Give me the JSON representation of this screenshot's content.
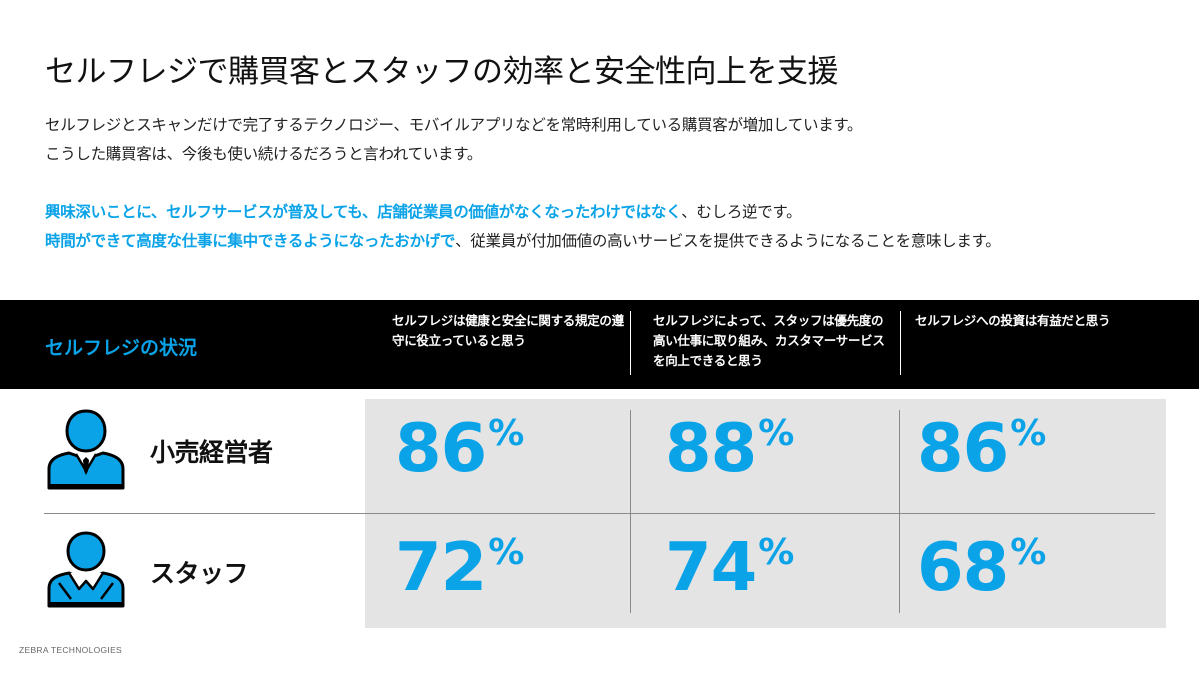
{
  "title": "セルフレジで購買客とスタッフの効率と安全性向上を支援",
  "intro": {
    "line1": "セルフレジとスキャンだけで完了するテクノロジー、モバイルアプリなどを常時利用している購買客が増加しています。",
    "line2": "こうした購買客は、今後も使い続けるだろうと言われています。"
  },
  "highlight": {
    "line1_emphasis": "興味深いことに、セルフサービスが普及しても、店舗従業員の価値がなくなったわけではなく",
    "line1_rest": "、むしろ逆です。",
    "line2_emphasis": "時間ができて高度な仕事に集中できるようになったおかげで",
    "line2_rest": "、従業員が付加価値の高いサービスを提供できるようになることを意味します。"
  },
  "accent_color": "#0aa3e8",
  "table": {
    "section_label": "セルフレジの状況",
    "columns": [
      "セルフレジは健康と安全に関する規定の遵守に役立っていると思う",
      "セルフレジによって、スタッフは優先度の高い仕事に取り組み、カスタマーサービスを向上できると思う",
      "セルフレジへの投資は有益だと思う"
    ],
    "rows": [
      {
        "label": "小売経営者",
        "icon": "retail-owner-person-icon",
        "values": [
          "86",
          "88",
          "86"
        ]
      },
      {
        "label": "スタッフ",
        "icon": "staff-person-icon",
        "values": [
          "72",
          "74",
          "68"
        ]
      }
    ],
    "percent_sign": "%"
  },
  "footer": "ZEBRA TECHNOLOGIES"
}
